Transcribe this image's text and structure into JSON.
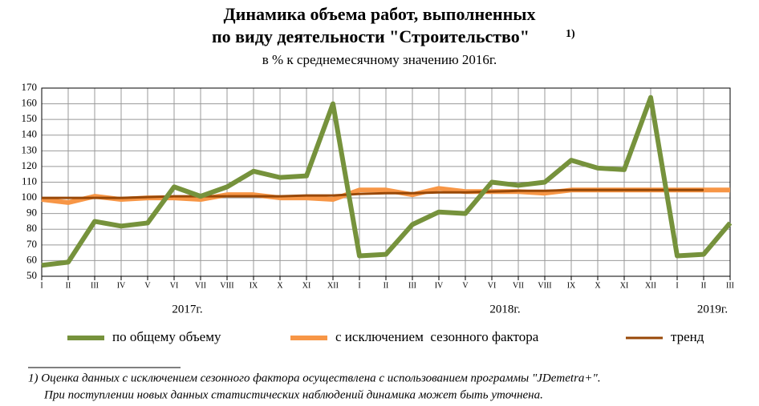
{
  "chart_data": {
    "type": "line",
    "title": [
      "Динамика объема работ, выполненных",
      "по виду деятельности \"Строительство\""
    ],
    "title_note": "1)",
    "subtitle": "в % к среднемесячному значению 2016г.",
    "categories": [
      "I",
      "II",
      "III",
      "IV",
      "V",
      "VI",
      "VII",
      "VIII",
      "IX",
      "X",
      "XI",
      "XII",
      "I",
      "II",
      "III",
      "IV",
      "V",
      "VI",
      "VII",
      "VIII",
      "IX",
      "X",
      "XI",
      "XII",
      "I",
      "II",
      "III"
    ],
    "years": [
      "2017г.",
      "2018г.",
      "2019г."
    ],
    "series": [
      {
        "name": "по общему объему",
        "color": "#76923c",
        "width": 6,
        "values": [
          57,
          59,
          85,
          82,
          84,
          107,
          101,
          107,
          117,
          113,
          114,
          160,
          63,
          64,
          83,
          91,
          90,
          110,
          108,
          110,
          124,
          119,
          118,
          164,
          63,
          64,
          84
        ]
      },
      {
        "name": "с исключением  сезонного фактора",
        "color": "#f79646",
        "width": 6,
        "values": [
          99,
          97,
          101,
          99,
          100,
          100,
          99,
          102,
          102,
          100,
          100,
          99,
          105,
          105,
          102,
          106,
          104,
          104,
          104,
          103,
          105,
          105,
          105,
          105,
          105,
          105,
          105
        ]
      },
      {
        "name": "тренд",
        "color": "#984807",
        "width": 3,
        "values": [
          100,
          100,
          100,
          100,
          100.5,
          101,
          101,
          101,
          101,
          101,
          101.5,
          101.5,
          102.5,
          103,
          103,
          103.5,
          103.5,
          104,
          104.5,
          104.5,
          105,
          105,
          105,
          105,
          105,
          105,
          null
        ]
      }
    ],
    "ylim": [
      50,
      170
    ],
    "yticks": [
      50,
      60,
      70,
      80,
      90,
      100,
      110,
      120,
      130,
      140,
      150,
      160,
      170
    ],
    "grid": true,
    "footnote": [
      "1) Оценка данных с исключением сезонного фактора осуществлена с использованием программы \"JDemetra+\".",
      "При поступлении новых данных статистических наблюдений динамика может быть уточнена."
    ]
  }
}
